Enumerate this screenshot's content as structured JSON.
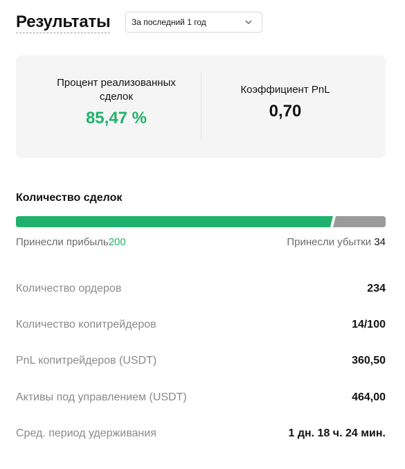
{
  "header": {
    "title": "Результаты",
    "period_select": {
      "value": "За последний 1 год"
    }
  },
  "summary": {
    "win_rate": {
      "label": "Процент реализованных сделок",
      "value": "85,47 %"
    },
    "pnl_ratio": {
      "label": "Коэффициент PnL",
      "value": "0,70"
    }
  },
  "trades": {
    "title": "Количество сделок",
    "profitable": {
      "label": "Принесли прибыль",
      "count": "200"
    },
    "losing": {
      "label": "Принесли убытки",
      "count": "34"
    },
    "profit_fraction": 0.8547
  },
  "stats": [
    {
      "label": "Количество ордеров",
      "value": "234"
    },
    {
      "label": "Количество копитрейдеров",
      "value": "14/100"
    },
    {
      "label": "PnL копитрейдеров (USDT)",
      "value": "360,50"
    },
    {
      "label": "Активы под управлением (USDT)",
      "value": "464,00"
    },
    {
      "label": "Сред. период удерживания",
      "value": "1 дн. 18 ч. 24 мин."
    }
  ],
  "colors": {
    "profit": "#20b26c",
    "loss": "#9a9a9a",
    "card_bg": "#f5f5f5"
  },
  "icons": {
    "period_select": "chevron-down-icon"
  }
}
